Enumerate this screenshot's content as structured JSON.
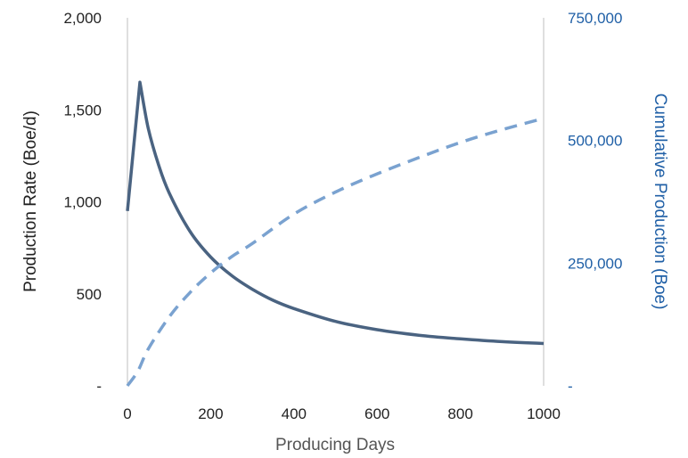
{
  "chart_data": {
    "type": "line",
    "title": "",
    "xlabel": "Producing Days",
    "ylabel_left": "Production Rate (Boe/d)",
    "ylabel_right": "Cumulative Production (Boe)",
    "xlim": [
      0,
      1000
    ],
    "ylim_left": [
      0,
      2000
    ],
    "ylim_right": [
      0,
      750000
    ],
    "x_ticks": [
      "0",
      "200",
      "400",
      "600",
      "800",
      "1000"
    ],
    "y_left_ticks": [
      "-",
      "500",
      "1,000",
      "1,500",
      "2,000"
    ],
    "y_right_ticks": [
      "-",
      "250,000",
      "500,000",
      "750,000"
    ],
    "grid": false,
    "legend": "none",
    "colors": {
      "rate": "#4a6381",
      "cumulative": "#7aa2d0",
      "left_axis_text": "#222222",
      "right_axis_text": "#1f5fa6",
      "axis_line": "#bfbfbf"
    },
    "series": [
      {
        "axis": "left",
        "style": "solid",
        "x": [
          0,
          30,
          50,
          75,
          100,
          150,
          200,
          250,
          300,
          350,
          400,
          500,
          600,
          700,
          800,
          900,
          1000
        ],
        "values": [
          950,
          1650,
          1400,
          1200,
          1050,
          840,
          700,
          600,
          525,
          465,
          420,
          350,
          305,
          275,
          255,
          240,
          230
        ]
      },
      {
        "axis": "right",
        "style": "dashed",
        "x": [
          0,
          25,
          50,
          100,
          150,
          200,
          250,
          300,
          400,
          500,
          600,
          700,
          800,
          900,
          1000
        ],
        "values": [
          0,
          30000,
          75000,
          140000,
          190000,
          230000,
          263000,
          290000,
          350000,
          395000,
          432000,
          465000,
          496000,
          522000,
          545000
        ]
      }
    ]
  }
}
